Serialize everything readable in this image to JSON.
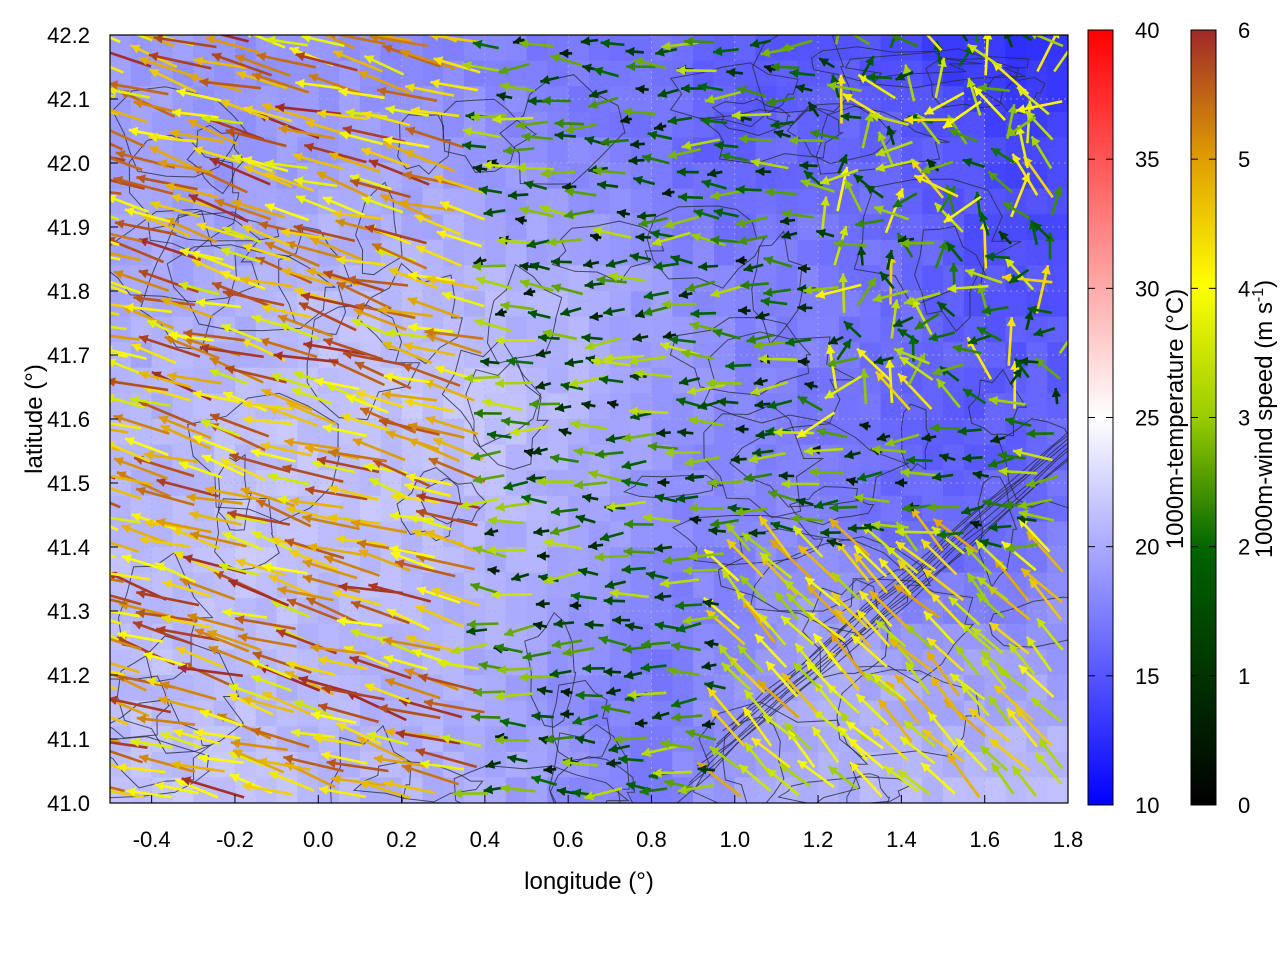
{
  "chart_data": {
    "type": "heatmap",
    "xlabel": "longitude (°)",
    "ylabel": "latitude (°)",
    "xlim": [
      -0.5,
      1.8
    ],
    "ylim": [
      41.0,
      42.2
    ],
    "xticks": [
      "-0.4",
      "-0.2",
      "0.0",
      "0.2",
      "0.4",
      "0.6",
      "0.8",
      "1.0",
      "1.2",
      "1.4",
      "1.6",
      "1.8"
    ],
    "yticks": [
      "41.0",
      "41.1",
      "41.2",
      "41.3",
      "41.4",
      "41.5",
      "41.6",
      "41.7",
      "41.8",
      "41.9",
      "42.0",
      "42.1",
      "42.2"
    ],
    "grid": true,
    "overlays": [
      "vectors",
      "contours"
    ],
    "colorbars": [
      {
        "label": "1000m-temperature (°C)",
        "range": [
          10,
          40
        ],
        "ticks": [
          "10",
          "15",
          "20",
          "25",
          "30",
          "35",
          "40"
        ],
        "palette": [
          "#0000ff",
          "#ffffff",
          "#ff0000"
        ]
      },
      {
        "label": "1000m-wind speed (m s",
        "label_sup": "-1",
        "label_end": ")",
        "range": [
          0,
          6
        ],
        "ticks": [
          "0",
          "1",
          "2",
          "3",
          "4",
          "5",
          "6"
        ],
        "palette": [
          "#000000",
          "#006400",
          "#99cc00",
          "#ffff00",
          "#e0a000",
          "#a0282a"
        ]
      }
    ],
    "temperature_field": {
      "description_grid_lon": [
        -0.4,
        -0.2,
        0.0,
        0.2,
        0.4,
        0.6,
        0.8,
        1.0,
        1.2,
        1.4,
        1.6,
        1.8
      ],
      "description_grid_lat": [
        42.2,
        42.0,
        41.8,
        41.6,
        41.4,
        41.2,
        41.0
      ],
      "values": [
        [
          19.0,
          18.5,
          18.5,
          18.0,
          17.5,
          17.0,
          16.5,
          15.5,
          15.0,
          14.0,
          13.0,
          12.5
        ],
        [
          19.5,
          19.0,
          19.5,
          19.5,
          19.0,
          18.0,
          17.0,
          15.5,
          16.5,
          16.0,
          14.5,
          14.0
        ],
        [
          20.0,
          20.0,
          21.0,
          21.0,
          20.5,
          20.5,
          19.0,
          18.0,
          17.5,
          16.5,
          15.0,
          15.0
        ],
        [
          20.5,
          21.0,
          21.5,
          21.5,
          21.5,
          20.5,
          19.5,
          18.0,
          17.0,
          16.0,
          15.5,
          16.0
        ],
        [
          21.0,
          21.5,
          21.5,
          21.0,
          20.5,
          20.0,
          18.0,
          17.5,
          18.5,
          16.5,
          16.0,
          17.5
        ],
        [
          21.0,
          21.0,
          20.5,
          20.5,
          20.0,
          18.5,
          17.0,
          18.5,
          20.0,
          20.0,
          19.5,
          19.5
        ],
        [
          21.5,
          21.5,
          21.0,
          20.5,
          20.0,
          18.5,
          17.0,
          19.5,
          20.5,
          21.0,
          21.0,
          21.5
        ]
      ]
    },
    "wind_field_summary": [
      {
        "region": "west (lon -0.5 to 0.4)",
        "direction": "from ESE toward WNW",
        "speed_range": [
          3.5,
          6.0
        ]
      },
      {
        "region": "central (lon 0.4 to 1.2)",
        "direction": "mostly westward",
        "speed_range": [
          0.5,
          3.5
        ]
      },
      {
        "region": "north-east (lat > 41.6, lon > 1.2)",
        "direction": "variable",
        "speed_range": [
          1.0,
          4.5
        ]
      },
      {
        "region": "south-east (lat < 41.4, lon > 1.0)",
        "direction": "toward NW",
        "speed_range": [
          3.0,
          5.0
        ]
      }
    ]
  }
}
